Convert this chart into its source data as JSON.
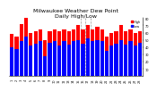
{
  "title": "Milwaukee Weather Dew Point",
  "subtitle": "Daily High/Low",
  "title_fontsize": 4.5,
  "days": [
    1,
    2,
    3,
    4,
    5,
    6,
    7,
    8,
    9,
    10,
    11,
    12,
    13,
    14,
    15,
    16,
    17,
    18,
    19,
    20,
    21,
    22,
    23,
    24,
    25,
    26,
    27,
    28
  ],
  "highs": [
    58,
    55,
    72,
    80,
    60,
    62,
    65,
    50,
    62,
    65,
    62,
    65,
    62,
    65,
    70,
    65,
    70,
    65,
    68,
    65,
    55,
    60,
    62,
    70,
    62,
    65,
    60,
    62
  ],
  "lows": [
    40,
    38,
    48,
    55,
    42,
    45,
    48,
    28,
    46,
    48,
    42,
    48,
    44,
    48,
    50,
    45,
    52,
    48,
    50,
    48,
    35,
    42,
    45,
    50,
    44,
    48,
    42,
    46
  ],
  "high_color": "#ff0000",
  "low_color": "#0000ff",
  "ylim_min": 0,
  "ylim_max": 80,
  "yticks": [
    10,
    20,
    30,
    40,
    50,
    60,
    70,
    80
  ],
  "bg_color": "#ffffff",
  "bar_width": 0.8,
  "dashed_vlines": [
    14.5,
    15.5,
    16.5
  ],
  "legend_high": "High",
  "legend_low": "Low"
}
